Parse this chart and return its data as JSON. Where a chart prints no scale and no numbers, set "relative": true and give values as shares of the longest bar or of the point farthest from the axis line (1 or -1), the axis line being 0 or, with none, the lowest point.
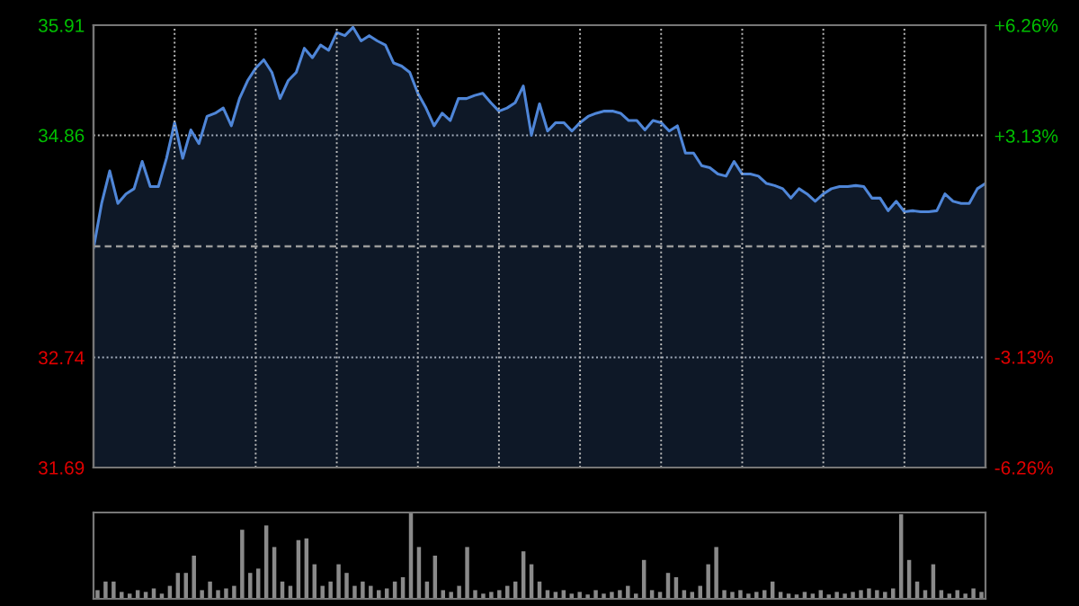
{
  "chart_data": [
    {
      "type": "area",
      "categories": [
        null,
        null,
        null,
        null,
        null,
        null,
        null,
        null,
        null,
        null,
        null,
        null,
        null,
        null,
        null,
        null,
        null,
        null,
        null,
        null,
        null,
        null,
        null,
        null,
        null,
        null,
        null,
        null,
        null,
        null,
        null,
        null,
        null,
        null,
        null,
        null,
        null,
        null,
        null,
        null,
        null,
        null,
        null,
        null,
        null,
        null,
        null,
        null,
        null,
        null,
        null,
        null,
        null,
        null,
        null,
        null,
        null,
        null,
        null,
        null,
        null,
        null,
        null,
        null,
        null,
        null,
        null,
        null,
        null,
        null,
        null,
        null,
        null,
        null,
        null,
        null,
        null,
        null,
        null,
        null,
        null,
        null,
        null,
        null,
        null,
        null,
        null,
        null,
        null,
        null,
        null,
        null,
        null,
        null,
        null,
        null,
        null,
        null,
        null,
        null,
        null,
        null,
        null,
        null,
        null,
        null,
        null,
        null,
        null,
        null,
        null
      ],
      "series": [
        {
          "color": "#4f86d8",
          "values": [
            33.78,
            34.21,
            34.52,
            34.21,
            34.3,
            34.35,
            34.61,
            34.37,
            34.37,
            34.64,
            34.98,
            34.64,
            34.91,
            34.78,
            35.04,
            35.07,
            35.12,
            34.95,
            35.21,
            35.38,
            35.5,
            35.58,
            35.46,
            35.21,
            35.38,
            35.46,
            35.69,
            35.6,
            35.72,
            35.67,
            35.84,
            35.81,
            35.89,
            35.76,
            35.81,
            35.76,
            35.72,
            35.55,
            35.52,
            35.46,
            35.26,
            35.12,
            34.95,
            35.07,
            35.0,
            35.21,
            35.21,
            35.24,
            35.26,
            35.17,
            35.09,
            35.12,
            35.17,
            35.33,
            34.86,
            35.16,
            34.9,
            34.98,
            34.98,
            34.9,
            34.98,
            35.04,
            35.07,
            35.09,
            35.09,
            35.07,
            35.0,
            35.0,
            34.91,
            35.0,
            34.98,
            34.9,
            34.95,
            34.69,
            34.69,
            34.57,
            34.55,
            34.49,
            34.47,
            34.61,
            34.49,
            34.49,
            34.47,
            34.4,
            34.38,
            34.35,
            34.26,
            34.35,
            34.3,
            34.23,
            34.3,
            34.35,
            34.37,
            34.37,
            34.38,
            34.37,
            34.26,
            34.26,
            34.14,
            34.23,
            34.13,
            34.14,
            34.13,
            34.13,
            34.14,
            34.3,
            34.23,
            34.21,
            34.21,
            34.35,
            34.4
          ]
        }
      ],
      "ylim": [
        31.69,
        35.91
      ],
      "yticks": [
        35.91,
        34.86,
        32.74,
        31.69
      ],
      "y2lim": [
        -6.26,
        6.26
      ],
      "y2ticks": [
        {
          "value": 6.26,
          "label": "+6.26%"
        },
        {
          "value": 3.13,
          "label": "+3.13%"
        },
        {
          "value": -3.13,
          "label": "-3.13%"
        },
        {
          "value": -6.26,
          "label": "-6.26%"
        }
      ],
      "ref_lines": [
        {
          "axis": "y",
          "value": 33.8,
          "label": null,
          "color": "#9a9a9a",
          "line_style": "dashed"
        }
      ],
      "grid": true,
      "legend": false
    },
    {
      "type": "bar",
      "relative": true,
      "categories": [
        null,
        null,
        null,
        null,
        null,
        null,
        null,
        null,
        null,
        null,
        null,
        null,
        null,
        null,
        null,
        null,
        null,
        null,
        null,
        null,
        null,
        null,
        null,
        null,
        null,
        null,
        null,
        null,
        null,
        null,
        null,
        null,
        null,
        null,
        null,
        null,
        null,
        null,
        null,
        null,
        null,
        null,
        null,
        null,
        null,
        null,
        null,
        null,
        null,
        null,
        null,
        null,
        null,
        null,
        null,
        null,
        null,
        null,
        null,
        null,
        null,
        null,
        null,
        null,
        null,
        null,
        null,
        null,
        null,
        null,
        null,
        null,
        null,
        null,
        null,
        null,
        null,
        null,
        null,
        null,
        null,
        null,
        null,
        null,
        null,
        null,
        null,
        null,
        null,
        null,
        null,
        null,
        null,
        null,
        null,
        null,
        null,
        null,
        null,
        null,
        null,
        null,
        null,
        null,
        null,
        null,
        null,
        null,
        null,
        null,
        null
      ],
      "series": [
        {
          "color": "#8a8a8a",
          "values": [
            0.1,
            0.2,
            0.2,
            0.08,
            0.06,
            0.1,
            0.08,
            0.12,
            0.06,
            0.15,
            0.3,
            0.3,
            0.5,
            0.1,
            0.2,
            0.1,
            0.12,
            0.15,
            0.8,
            0.3,
            0.35,
            0.85,
            0.6,
            0.2,
            0.15,
            0.68,
            0.7,
            0.4,
            0.15,
            0.2,
            0.4,
            0.3,
            0.15,
            0.2,
            0.15,
            0.1,
            0.12,
            0.2,
            0.25,
            1.0,
            0.6,
            0.2,
            0.5,
            0.1,
            0.08,
            0.15,
            0.6,
            0.1,
            0.06,
            0.08,
            0.1,
            0.15,
            0.2,
            0.55,
            0.4,
            0.2,
            0.1,
            0.08,
            0.1,
            0.06,
            0.08,
            0.05,
            0.1,
            0.06,
            0.08,
            0.1,
            0.15,
            0.06,
            0.45,
            0.1,
            0.08,
            0.3,
            0.25,
            0.1,
            0.08,
            0.15,
            0.4,
            0.6,
            0.1,
            0.08,
            0.1,
            0.06,
            0.08,
            0.1,
            0.2,
            0.08,
            0.06,
            0.05,
            0.08,
            0.06,
            0.1,
            0.05,
            0.08,
            0.06,
            0.08,
            0.1,
            0.12,
            0.1,
            0.08,
            0.12,
            0.98,
            0.45,
            0.2,
            0.1,
            0.4,
            0.1,
            0.06,
            0.1,
            0.06,
            0.12,
            0.08
          ]
        }
      ],
      "grid": false,
      "legend": false
    }
  ]
}
